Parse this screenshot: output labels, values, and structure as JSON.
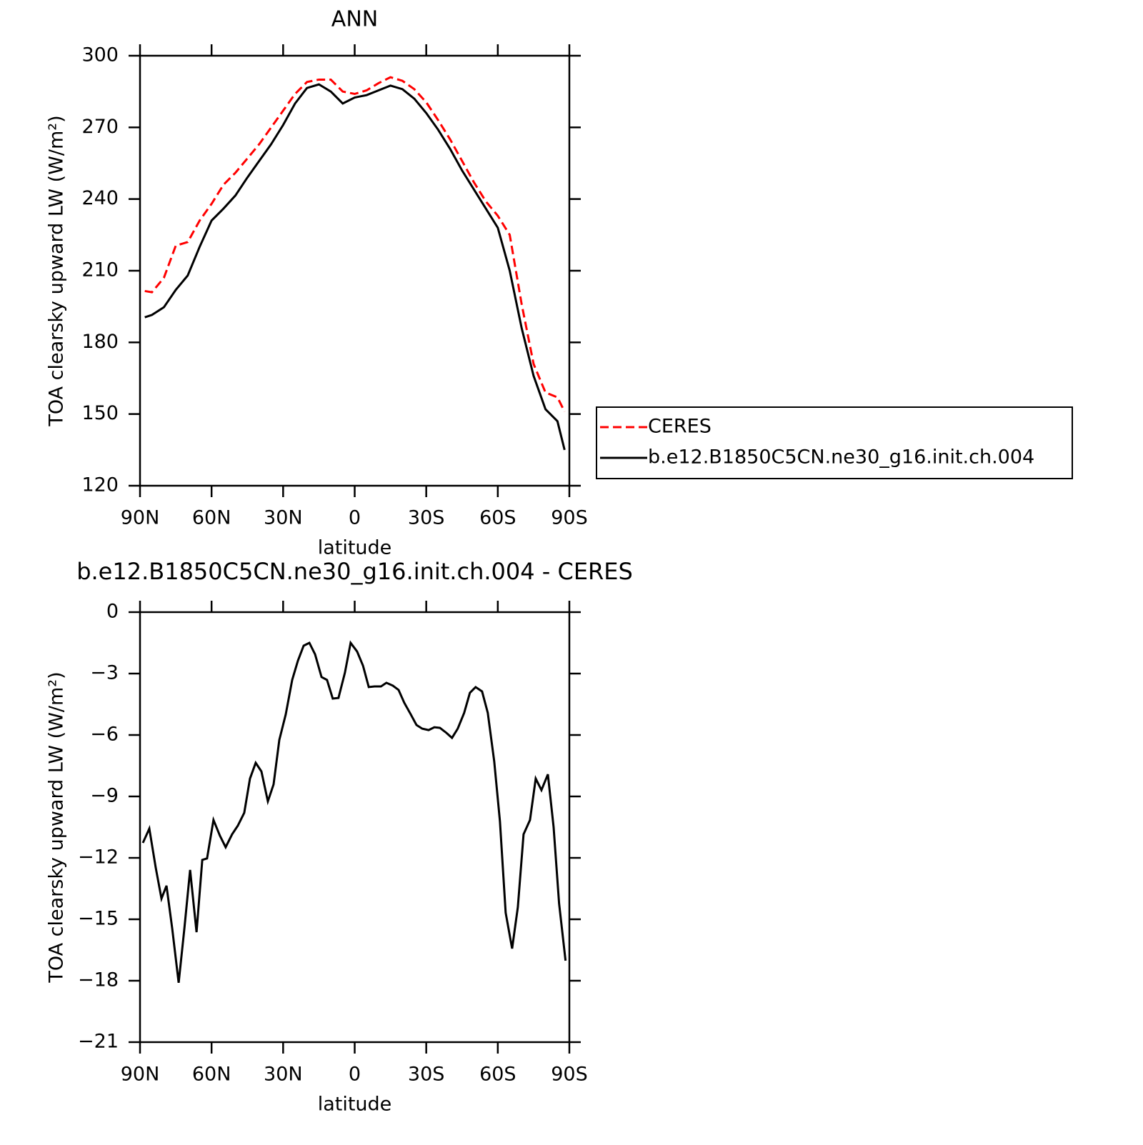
{
  "chart_data": [
    {
      "type": "line",
      "title": "ANN",
      "xlabel": "latitude",
      "ylabel": "TOA clearsky upward LW (W/m²)",
      "xlim": [
        90,
        -90
      ],
      "ylim": [
        120,
        300
      ],
      "xticks": [
        {
          "value": 90,
          "label": "90N"
        },
        {
          "value": 60,
          "label": "60N"
        },
        {
          "value": 30,
          "label": "30N"
        },
        0,
        {
          "value": -30,
          "label": "30S"
        },
        {
          "value": -60,
          "label": "60S"
        },
        {
          "value": -90,
          "label": "90S"
        }
      ],
      "yticks": [
        120,
        150,
        180,
        210,
        240,
        270,
        300
      ],
      "legend": "right",
      "x": [
        88,
        85,
        80,
        75,
        70,
        65,
        60,
        55,
        50,
        45,
        40,
        35,
        30,
        25,
        20,
        15,
        10,
        5,
        0,
        -5,
        -10,
        -15,
        -20,
        -25,
        -30,
        -35,
        -40,
        -45,
        -50,
        -55,
        -60,
        -65,
        -70,
        -75,
        -80,
        -85,
        -88
      ],
      "series": [
        {
          "name": "CERES",
          "color": "#ff0000",
          "dash": true,
          "values": [
            201.5,
            201,
            207,
            220.5,
            222,
            231,
            238,
            246,
            251,
            257,
            263,
            270,
            277,
            284,
            289,
            290,
            290,
            285,
            284,
            285.5,
            288.5,
            291,
            289.5,
            286,
            280.5,
            273,
            265,
            256,
            247,
            239,
            233,
            225,
            196,
            171,
            159,
            157,
            151
          ]
        },
        {
          "name": "b.e12.B1850C5CN.ne30_g16.init.ch.004",
          "color": "#000000",
          "dash": false,
          "values": [
            190.5,
            191.5,
            194.7,
            202,
            208,
            220,
            231,
            236,
            241.5,
            249,
            256,
            263,
            271,
            280,
            286.5,
            288,
            285,
            280,
            282.5,
            283.5,
            285.5,
            287.5,
            286,
            282,
            276,
            269,
            261,
            252,
            244,
            236,
            228,
            210,
            186,
            166,
            152,
            147,
            135
          ]
        }
      ]
    },
    {
      "type": "line",
      "title": "b.e12.B1850C5CN.ne30_g16.init.ch.004 - CERES",
      "xlabel": "latitude",
      "ylabel": "TOA clearsky upward LW (W/m²)",
      "xlim": [
        90,
        -90
      ],
      "ylim": [
        -21,
        0
      ],
      "xticks": [
        {
          "value": 90,
          "label": "90N"
        },
        {
          "value": 60,
          "label": "60N"
        },
        {
          "value": 30,
          "label": "30N"
        },
        0,
        {
          "value": -30,
          "label": "30S"
        },
        {
          "value": -60,
          "label": "60S"
        },
        {
          "value": -90,
          "label": "90S"
        }
      ],
      "yticks": [
        {
          "value": -21,
          "label": "−21"
        },
        {
          "value": -18,
          "label": "−18"
        },
        {
          "value": -15,
          "label": "−15"
        },
        {
          "value": -12,
          "label": "−12"
        },
        {
          "value": -9,
          "label": "−9"
        },
        {
          "value": -6,
          "label": "−6"
        },
        {
          "value": -3,
          "label": "−3"
        },
        0
      ],
      "x": [
        88.8,
        86.1,
        83.4,
        81,
        78.9,
        76.5,
        73.8,
        71.4,
        69,
        66.3,
        63.9,
        61.9,
        59.2,
        56.5,
        54.1,
        51.4,
        49,
        46.3,
        43.9,
        41.5,
        39.1,
        36.4,
        34,
        31.6,
        28.9,
        26.2,
        23.8,
        21.4,
        19,
        16.6,
        13.9,
        11.6,
        9.2,
        6.8,
        4.1,
        1.7,
        -1,
        -3.5,
        -5.9,
        -8.3,
        -11,
        -13.3,
        -16,
        -18.4,
        -20.8,
        -23.5,
        -25.9,
        -28.3,
        -31,
        -33.4,
        -35.7,
        -38.4,
        -40.8,
        -43.2,
        -45.9,
        -48.3,
        -50.7,
        -53.4,
        -55.8,
        -58.5,
        -60.9,
        -63.3,
        -66,
        -68.4,
        -70.8,
        -73.5,
        -75.9,
        -78.3,
        -81,
        -83.4,
        -85.7,
        -88.4
      ],
      "series": [
        {
          "color": "#000000",
          "dash": false,
          "values": [
            -11.27,
            -10.57,
            -12.49,
            -13.99,
            -13.36,
            -15.45,
            -18.1,
            -15.45,
            -12.59,
            -15.63,
            -12.1,
            -12.03,
            -10.15,
            -10.92,
            -11.48,
            -10.85,
            -10.43,
            -9.8,
            -8.13,
            -7.36,
            -7.78,
            -9.24,
            -8.41,
            -6.24,
            -4.99,
            -3.31,
            -2.37,
            -1.64,
            -1.5,
            -2.06,
            -3.17,
            -3.31,
            -4.22,
            -4.19,
            -2.96,
            -1.5,
            -1.92,
            -2.62,
            -3.66,
            -3.63,
            -3.63,
            -3.45,
            -3.59,
            -3.8,
            -4.43,
            -4.99,
            -5.51,
            -5.69,
            -5.76,
            -5.62,
            -5.65,
            -5.89,
            -6.14,
            -5.69,
            -4.92,
            -3.94,
            -3.66,
            -3.87,
            -4.92,
            -7.29,
            -10.22,
            -14.68,
            -16.43,
            -14.41,
            -10.85,
            -10.15,
            -8.13,
            -8.69,
            -7.92,
            -10.5,
            -14.23,
            -17.02
          ]
        }
      ]
    }
  ]
}
